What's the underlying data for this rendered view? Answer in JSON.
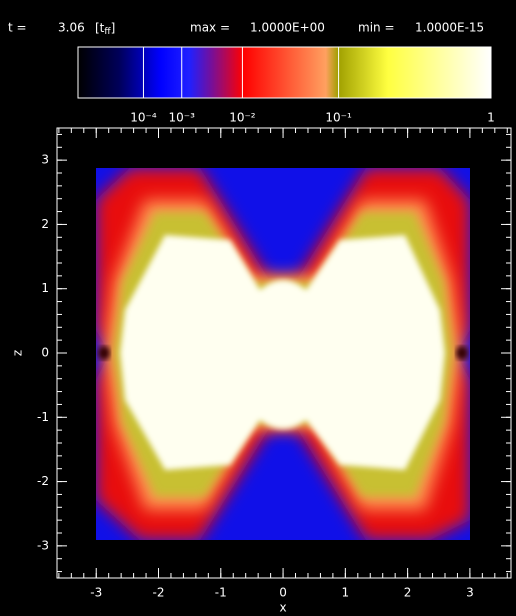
{
  "chart_data": {
    "type": "heatmap",
    "header": {
      "time_label": "t =",
      "time_value": "3.06",
      "time_unit": [
        "[t",
        "ff",
        "]"
      ],
      "max_label": "max =",
      "max_value": "1.0000E+00",
      "min_label": "min =",
      "min_value": "1.0000E-15"
    },
    "colorbar": {
      "scale_power": 0.2,
      "lim": [
        0,
        1
      ],
      "ticks": [
        {
          "value": 0.0001,
          "label": "10⁻⁴"
        },
        {
          "value": 0.001,
          "label": "10⁻³"
        },
        {
          "value": 0.01,
          "label": "10⁻²"
        },
        {
          "value": 0.1,
          "label": "10⁻¹"
        },
        1
      ]
    },
    "xlabel": "x",
    "ylabel": "z",
    "xlim": [
      -3.63,
      3.66
    ],
    "ylim": [
      -3.5,
      3.5
    ],
    "xticks": [
      -3,
      -2,
      -1,
      0,
      1,
      2,
      3
    ],
    "yticks": [
      -3,
      -2,
      -1,
      0,
      1,
      2,
      3
    ]
  }
}
